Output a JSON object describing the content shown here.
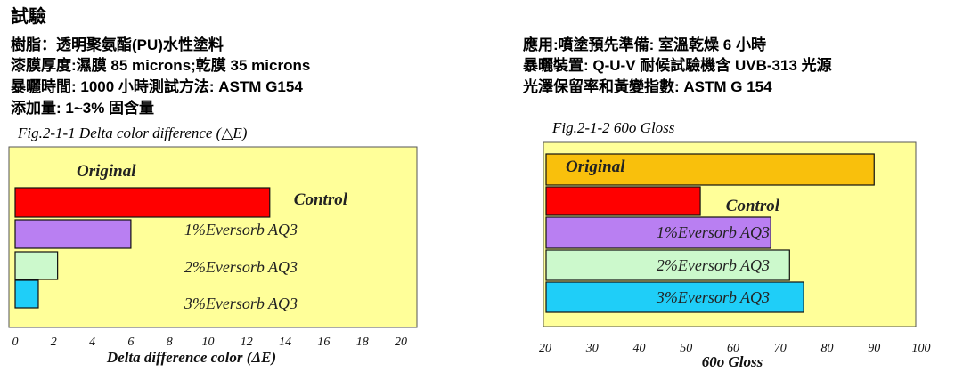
{
  "heading": "試驗",
  "info_left": [
    "樹脂：透明聚氨酯(PU)水性塗料",
    "漆膜厚度:濕膜  85 microns;乾膜  35 microns",
    "暴曬時間: 1000 小時測試方法: ASTM G154",
    "添加量: 1~3%  固含量"
  ],
  "info_right": [
    "應用:噴塗預先準備:  室溫乾燥 6 小時",
    "暴曬裝置: Q-U-V  耐候試驗機含  UVB-313 光源",
    " 光澤保留率和黃變指數: ASTM G 154"
  ],
  "chart_data": [
    {
      "type": "bar",
      "orientation": "horizontal",
      "title": "Fig.2-1-1 Delta  color difference (△E)",
      "xlabel": "Delta difference color (ΔE)",
      "xlim": [
        0,
        20
      ],
      "xticks": [
        "0",
        "2",
        "4",
        "6",
        "8",
        "10",
        "12",
        "14",
        "16",
        "18",
        "20"
      ],
      "categories": [
        "Original",
        "Control",
        "1%Eversorb AQ3",
        "2%Eversorb AQ3",
        "3%Eversorb AQ3"
      ],
      "values": [
        0,
        13.2,
        6.0,
        2.2,
        1.2
      ],
      "colors": [
        "#fffbaa",
        "#ff0000",
        "#b97ff2",
        "#ccf9cc",
        "#1fcef8"
      ],
      "background": "#ffff99"
    },
    {
      "type": "bar",
      "orientation": "horizontal",
      "title": "Fig.2-1-2 60o Gloss",
      "xlabel": "60o Gloss",
      "xlim": [
        20,
        100
      ],
      "xticks": [
        "20",
        "30",
        "40",
        "50",
        "60",
        "70",
        "80",
        "90",
        "100"
      ],
      "categories": [
        "Original",
        "Control",
        "1%Eversorb AQ3",
        "2%Eversorb AQ3",
        "3%Eversorb AQ3"
      ],
      "values": [
        90,
        53,
        68,
        72,
        75
      ],
      "colors": [
        "#f9c00c",
        "#ff0000",
        "#b97ff2",
        "#ccf9cc",
        "#1fcef8"
      ],
      "background": "#ffff99"
    }
  ]
}
